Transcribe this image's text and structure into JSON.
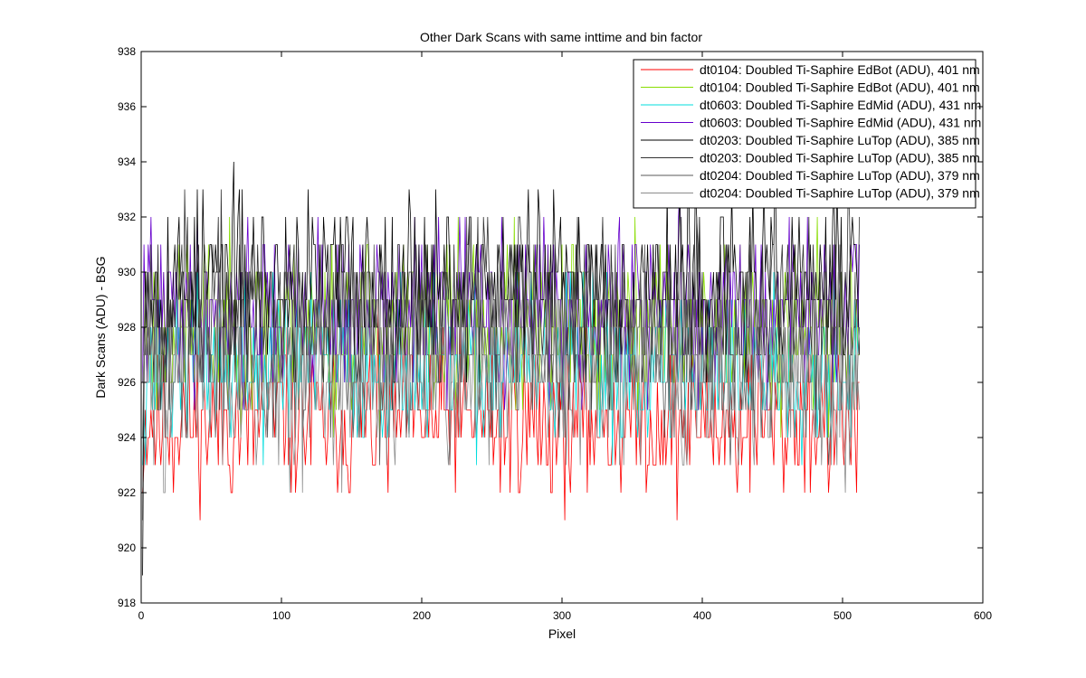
{
  "chart_data": {
    "type": "line",
    "title": "Other Dark Scans with same inttime and bin factor",
    "xlabel": "Pixel",
    "ylabel": "Dark Scans (ADU) - BSG",
    "xlim": [
      0,
      600
    ],
    "ylim": [
      918,
      938
    ],
    "xticks": [
      0,
      100,
      200,
      300,
      400,
      500,
      600
    ],
    "yticks": [
      918,
      920,
      922,
      924,
      926,
      928,
      930,
      932,
      934,
      936,
      938
    ],
    "xtick_labels": [
      "0",
      "100",
      "200",
      "300",
      "400",
      "500",
      "600"
    ],
    "ytick_labels": [
      "918",
      "920",
      "922",
      "924",
      "926",
      "928",
      "930",
      "932",
      "934",
      "936",
      "938"
    ],
    "grid": false,
    "legend_position": "top-right",
    "x_range": [
      1,
      512
    ],
    "series": [
      {
        "name": "dt0104: Doubled Ti-Saphire EdBot (ADU), 401 nm",
        "color": "#ff0000",
        "mean": 924.6,
        "spread": 1.4,
        "start": 922,
        "seed": 11
      },
      {
        "name": "dt0104: Doubled Ti-Saphire EdBot (ADU), 401 nm",
        "color": "#88dd00",
        "mean": 928.0,
        "spread": 1.6,
        "start": 927,
        "seed": 23
      },
      {
        "name": "dt0603: Doubled Ti-Saphire EdMid (ADU), 431 nm",
        "color": "#00dddd",
        "mean": 926.6,
        "spread": 1.5,
        "start": 923,
        "seed": 37
      },
      {
        "name": "dt0603: Doubled Ti-Saphire EdMid (ADU), 431 nm",
        "color": "#6600cc",
        "mean": 928.6,
        "spread": 1.5,
        "start": 926,
        "seed": 41
      },
      {
        "name": "dt0203: Doubled Ti-Saphire LuTop (ADU), 385 nm",
        "color": "#000000",
        "mean": 929.6,
        "spread": 1.6,
        "start": 919,
        "seed": 53
      },
      {
        "name": "dt0203: Doubled Ti-Saphire LuTop (ADU), 385 nm",
        "color": "#333333",
        "mean": 928.8,
        "spread": 1.6,
        "start": 921,
        "seed": 67
      },
      {
        "name": "dt0204: Doubled Ti-Saphire LuTop (ADU), 379 nm",
        "color": "#5a5a5a",
        "mean": 927.2,
        "spread": 1.6,
        "start": 924,
        "seed": 71
      },
      {
        "name": "dt0204: Doubled Ti-Saphire LuTop (ADU), 379 nm",
        "color": "#8c8c8c",
        "mean": 926.2,
        "spread": 1.6,
        "start": 926,
        "seed": 83
      }
    ]
  }
}
